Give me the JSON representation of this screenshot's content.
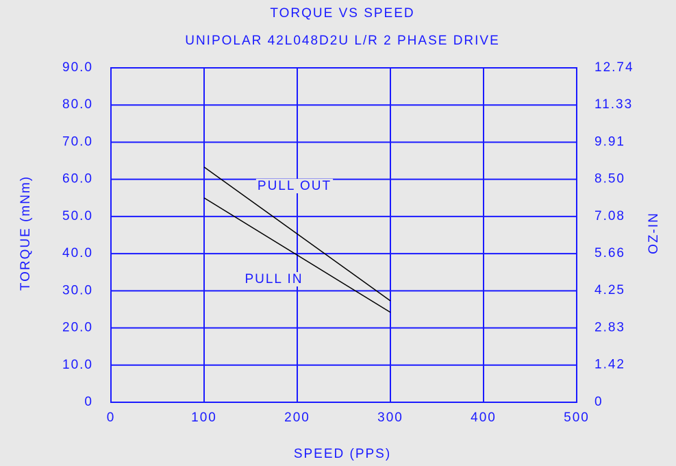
{
  "chart_data": {
    "type": "line",
    "title": "TORQUE VS SPEED",
    "subtitle": "UNIPOLAR 42L048D2U L/R 2 PHASE DRIVE",
    "x_label": "SPEED (PPS)",
    "y_label": "TORQUE (mNm)",
    "y2_label": "OZ-IN",
    "series": [
      {
        "name": "PULL OUT",
        "color": "#000000",
        "x": [
          100,
          300
        ],
        "values": [
          63.3,
          27.3
        ]
      },
      {
        "name": "PULL IN",
        "color": "#000000",
        "x": [
          100,
          300
        ],
        "values": [
          55.0,
          24.2
        ]
      }
    ],
    "xlim": [
      0,
      500
    ],
    "xticks": [
      0,
      100,
      200,
      300,
      400,
      500
    ],
    "ylim": [
      0,
      90
    ],
    "yticks": [
      0,
      {
        "value": 10,
        "label": "10.0"
      },
      {
        "value": 20,
        "label": "20.0"
      },
      {
        "value": 30,
        "label": "30.0"
      },
      {
        "value": 40,
        "label": "40.0"
      },
      {
        "value": 50,
        "label": "50.0"
      },
      {
        "value": 60,
        "label": "60.0"
      },
      {
        "value": 70,
        "label": "70.0"
      },
      {
        "value": 80,
        "label": "80.0"
      },
      {
        "value": 90,
        "label": "90.0"
      }
    ],
    "y2lim": [
      0,
      12.74
    ],
    "y2ticks": [
      0,
      1.42,
      2.83,
      4.25,
      5.66,
      7.08,
      {
        "value": 8.5,
        "label": "8.50"
      },
      9.91,
      11.33,
      12.74
    ],
    "grid": true,
    "axis_color": "#1a1aff"
  }
}
